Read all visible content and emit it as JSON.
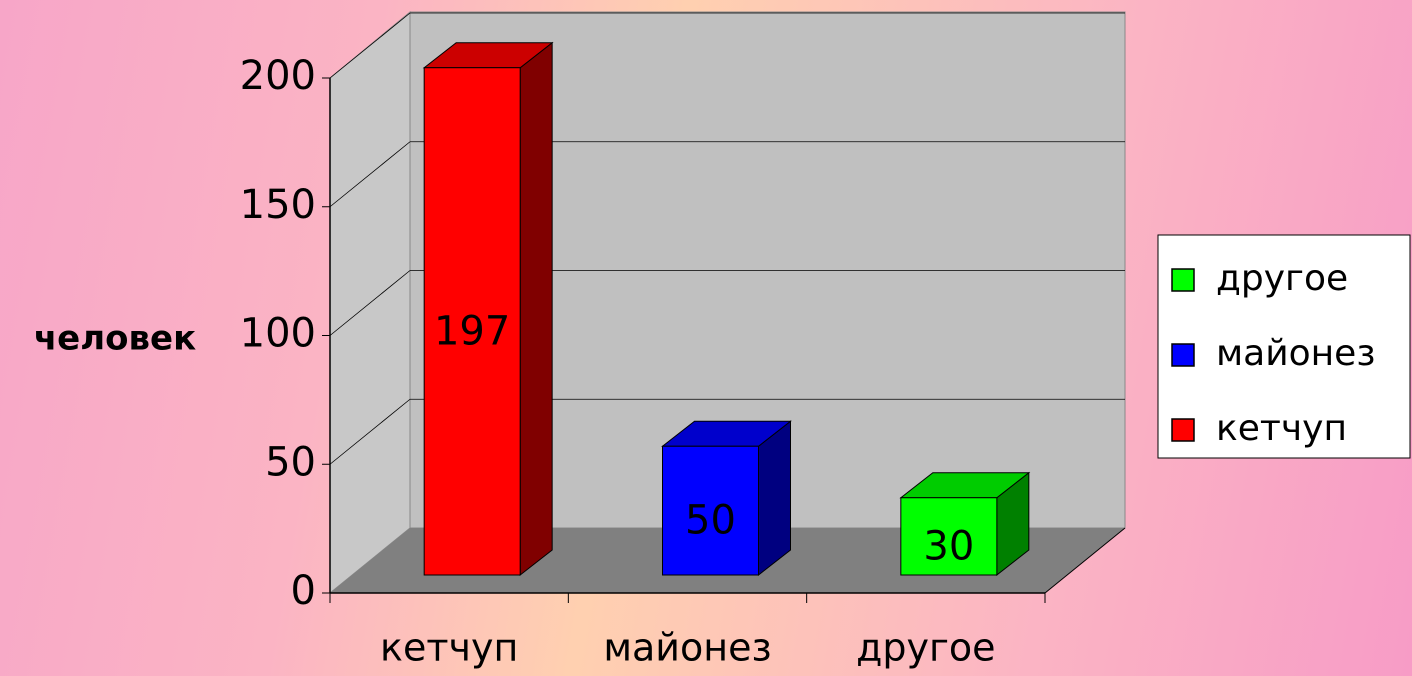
{
  "chart_data": {
    "type": "bar3d",
    "y_label": "человек",
    "categories": [
      "кетчуп",
      "майонез",
      "другое"
    ],
    "series": [
      {
        "name": "кетчуп",
        "color": "#ff0000",
        "values": [
          197,
          null,
          null
        ]
      },
      {
        "name": "майонез",
        "color": "#0000ff",
        "values": [
          null,
          50,
          null
        ]
      },
      {
        "name": "другое",
        "color": "#00ff00",
        "values": [
          null,
          null,
          30
        ]
      }
    ],
    "ylim": [
      0,
      200
    ],
    "yticks": [
      0,
      50,
      100,
      150,
      200
    ],
    "grid": true,
    "legend": "right"
  }
}
